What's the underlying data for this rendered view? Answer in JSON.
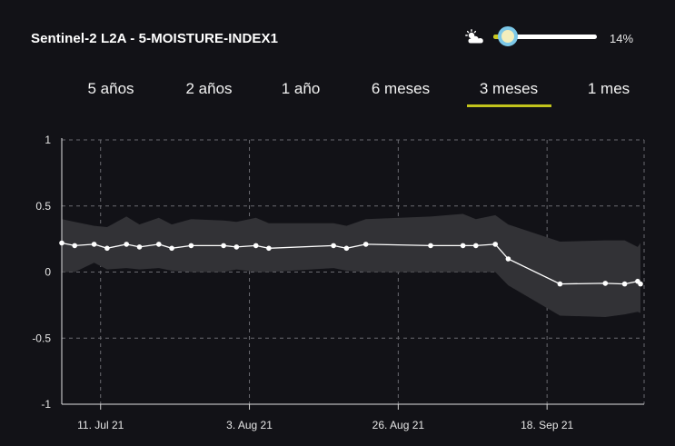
{
  "header": {
    "title": "Sentinel-2 L2A - 5-MOISTURE-INDEX1",
    "cloud_icon": "cloud-sun-icon",
    "cloud_coverage_label": "14%",
    "cloud_coverage_fraction": 0.14,
    "accent_color": "#c2c41c"
  },
  "tabs": [
    {
      "label": "5 años",
      "active": false
    },
    {
      "label": "2 años",
      "active": false
    },
    {
      "label": "1 año",
      "active": false
    },
    {
      "label": "6 meses",
      "active": false
    },
    {
      "label": "3 meses",
      "active": true
    },
    {
      "label": "1 mes",
      "active": false
    }
  ],
  "chart_data": {
    "type": "line",
    "ylim": [
      -1,
      1
    ],
    "yticks": [
      "1",
      "0.5",
      "0",
      "-0.5",
      "-1"
    ],
    "yticks_values": [
      1,
      0.5,
      0,
      -0.5,
      -1
    ],
    "xlim": [
      "2021-07-05",
      "2021-10-03"
    ],
    "xticks": [
      {
        "date": "2021-07-11",
        "label": "11. Jul 21"
      },
      {
        "date": "2021-08-03",
        "label": "3. Aug 21"
      },
      {
        "date": "2021-08-26",
        "label": "26. Aug 21"
      },
      {
        "date": "2021-09-18",
        "label": "18. Sep 21"
      }
    ],
    "grid": true,
    "series_color": "#ffffff",
    "band_color": "#323236",
    "series": [
      {
        "points": [
          [
            "2021-07-05",
            0.22
          ],
          [
            "2021-07-07",
            0.2
          ],
          [
            "2021-07-10",
            0.21
          ],
          [
            "2021-07-12",
            0.18
          ],
          [
            "2021-07-15",
            0.21
          ],
          [
            "2021-07-17",
            0.19
          ],
          [
            "2021-07-20",
            0.21
          ],
          [
            "2021-07-22",
            0.18
          ],
          [
            "2021-07-25",
            0.2
          ],
          [
            "2021-07-30",
            0.2
          ],
          [
            "2021-08-01",
            0.19
          ],
          [
            "2021-08-04",
            0.2
          ],
          [
            "2021-08-06",
            0.18
          ],
          [
            "2021-08-16",
            0.2
          ],
          [
            "2021-08-18",
            0.18
          ],
          [
            "2021-08-21",
            0.21
          ],
          [
            "2021-08-31",
            0.2
          ],
          [
            "2021-09-05",
            0.2
          ],
          [
            "2021-09-07",
            0.2
          ],
          [
            "2021-09-10",
            0.21
          ],
          [
            "2021-09-12",
            0.1
          ],
          [
            "2021-09-20",
            -0.09
          ],
          [
            "2021-09-27",
            -0.085
          ],
          [
            "2021-09-30",
            -0.09
          ],
          [
            "2021-10-02",
            -0.07
          ],
          [
            "2021-10-05",
            -0.09
          ]
        ],
        "band": [
          [
            "2021-07-05",
            0.4,
            0.0
          ],
          [
            "2021-07-07",
            0.38,
            0.0
          ],
          [
            "2021-07-10",
            0.35,
            0.07
          ],
          [
            "2021-07-12",
            0.34,
            0.02
          ],
          [
            "2021-07-15",
            0.42,
            0.03
          ],
          [
            "2021-07-17",
            0.36,
            0.02
          ],
          [
            "2021-07-20",
            0.41,
            0.03
          ],
          [
            "2021-07-22",
            0.36,
            0.01
          ],
          [
            "2021-07-25",
            0.4,
            0.0
          ],
          [
            "2021-07-30",
            0.39,
            0.0
          ],
          [
            "2021-08-01",
            0.38,
            0.02
          ],
          [
            "2021-08-04",
            0.41,
            0.0
          ],
          [
            "2021-08-06",
            0.37,
            0.0
          ],
          [
            "2021-08-16",
            0.37,
            0.03
          ],
          [
            "2021-08-18",
            0.35,
            0.01
          ],
          [
            "2021-08-21",
            0.4,
            0.0
          ],
          [
            "2021-08-31",
            0.42,
            0.0
          ],
          [
            "2021-09-05",
            0.44,
            0.0
          ],
          [
            "2021-09-07",
            0.4,
            0.0
          ],
          [
            "2021-09-10",
            0.43,
            0.0
          ],
          [
            "2021-09-12",
            0.36,
            -0.1
          ],
          [
            "2021-09-20",
            0.23,
            -0.33
          ],
          [
            "2021-09-27",
            0.24,
            -0.34
          ],
          [
            "2021-09-30",
            0.24,
            -0.32
          ],
          [
            "2021-10-02",
            0.19,
            -0.3
          ],
          [
            "2021-10-05",
            0.22,
            -0.31
          ]
        ]
      }
    ]
  }
}
